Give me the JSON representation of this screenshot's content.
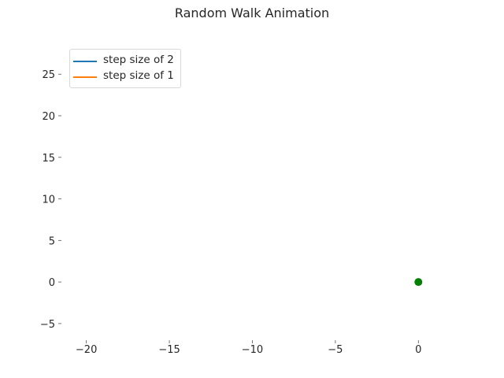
{
  "chart_data": {
    "type": "line",
    "title": "Random Walk Animation",
    "xlabel": "",
    "ylabel": "",
    "xlim": [
      -21.5,
      2.5
    ],
    "ylim": [
      -7,
      29
    ],
    "xticks": [
      -20,
      -15,
      -10,
      -5,
      0
    ],
    "xtick_labels": [
      "−20",
      "−15",
      "−10",
      "−5",
      "0"
    ],
    "yticks": [
      -5,
      0,
      5,
      10,
      15,
      20,
      25
    ],
    "ytick_labels": [
      "−5",
      "0",
      "5",
      "10",
      "15",
      "20",
      "25"
    ],
    "grid": false,
    "legend_position": "top-left",
    "series": [
      {
        "name": "step size of 2",
        "color": "#1f77b4",
        "x": [],
        "y": []
      },
      {
        "name": "step size of 1",
        "color": "#ff7f0e",
        "x": [],
        "y": []
      }
    ],
    "points": [
      {
        "x": 0,
        "y": 0,
        "color": "#008000"
      }
    ]
  }
}
